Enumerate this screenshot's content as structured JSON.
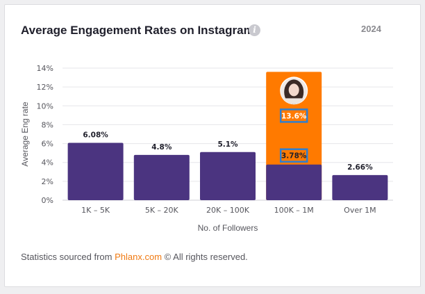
{
  "header": {
    "title": "Average Engagement Rates on Instagram",
    "year": "2024",
    "info_icon": "info-icon"
  },
  "footer": {
    "prefix": "Statistics sourced from",
    "link": "Phlanx.com",
    "suffix": "© All rights reserved."
  },
  "colors": {
    "bar": "#4b3480",
    "highlight": "#ff7a00",
    "label_box": "#2f7fd0"
  },
  "chart_data": {
    "type": "bar",
    "xlabel": "No. of Followers",
    "ylabel": "Average Eng rate",
    "ylim": [
      0,
      14
    ],
    "yticks": [
      "0%",
      "2%",
      "4%",
      "6%",
      "8%",
      "10%",
      "12%",
      "14%"
    ],
    "grid": true,
    "categories": [
      "1K – 5K",
      "5K – 20K",
      "20K – 100K",
      "100K – 1M",
      "Over 1M"
    ],
    "values": [
      6.08,
      4.8,
      5.1,
      3.78,
      2.66
    ],
    "labels": [
      "6.08%",
      "4.8%",
      "5.1%",
      "3.78%",
      "2.66%"
    ],
    "highlight": {
      "category": "100K – 1M",
      "value": 13.6,
      "label": "13.6%",
      "avatar": "profile-avatar"
    }
  }
}
